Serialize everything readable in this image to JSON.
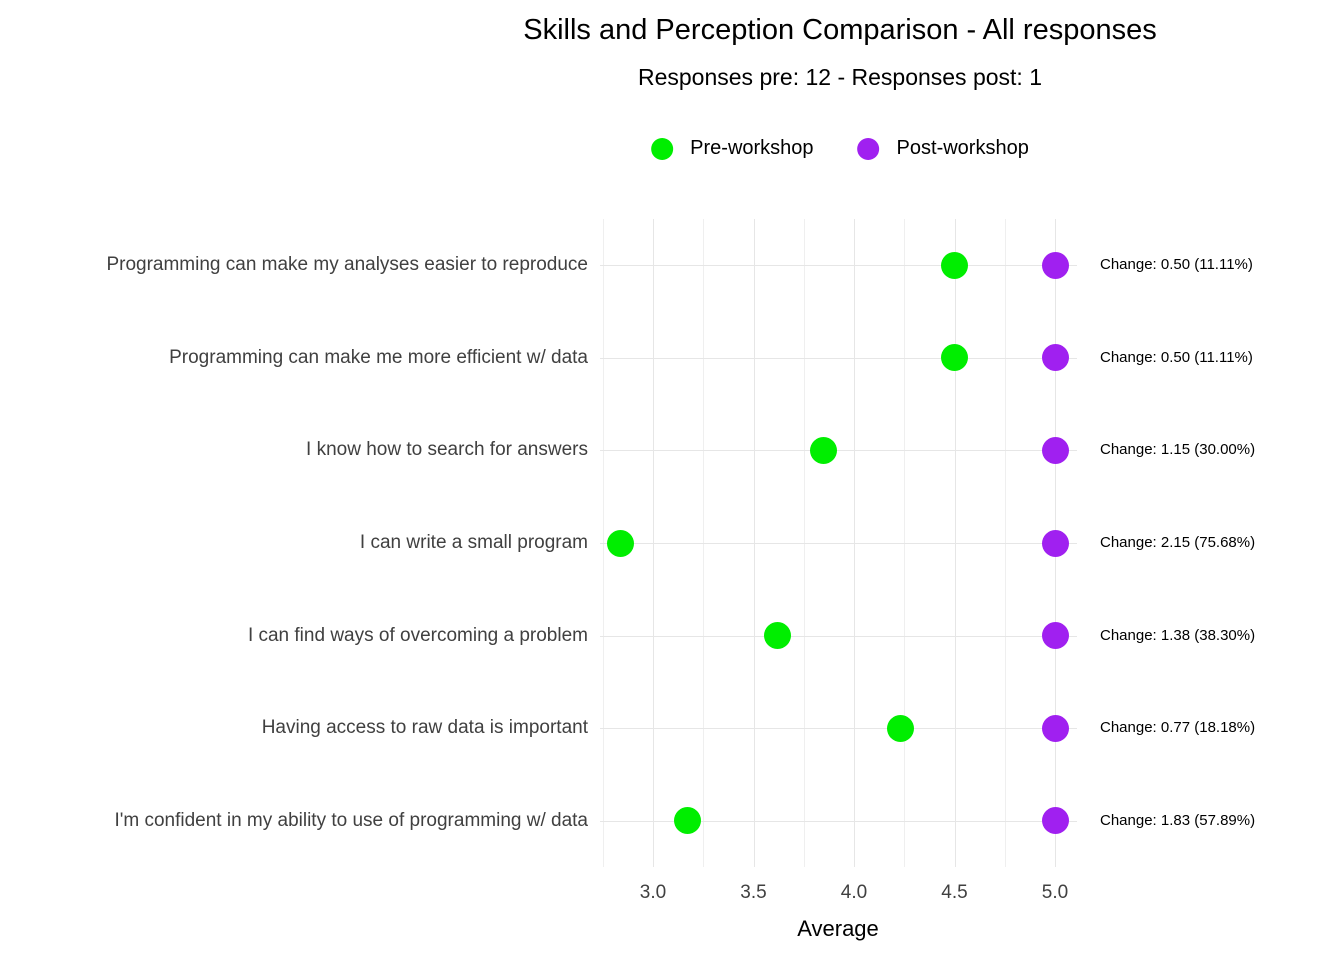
{
  "chart_data": {
    "type": "scatter",
    "title": "Skills and Perception Comparison - All responses",
    "subtitle": "Responses pre: 12 - Responses post: 1",
    "xlabel": "Average",
    "categories": [
      "Programming can make my analyses easier to reproduce",
      "Programming can make me more efficient w/ data",
      "I know how to search for answers",
      "I can write a small program",
      "I can find ways of overcoming a problem",
      "Having access to raw data is important",
      "I'm confident in my ability to use of programming w/ data"
    ],
    "series": [
      {
        "name": "Pre-workshop",
        "color": "#00ee00",
        "values": [
          4.5,
          4.5,
          3.85,
          2.84,
          3.62,
          4.23,
          3.17
        ]
      },
      {
        "name": "Post-workshop",
        "color": "#a020f0",
        "values": [
          5.0,
          5.0,
          5.0,
          5.0,
          5.0,
          5.0,
          5.0
        ]
      }
    ],
    "annotations": [
      "Change: 0.50 (11.11%)",
      "Change: 0.50 (11.11%)",
      "Change: 1.15 (30.00%)",
      "Change: 2.15 (75.68%)",
      "Change: 1.38 (38.30%)",
      "Change: 0.77 (18.18%)",
      "Change: 1.83 (57.89%)"
    ],
    "x_ticks": [
      3.0,
      3.5,
      4.0,
      4.5,
      5.0
    ],
    "x_tick_labels": [
      "3.0",
      "3.5",
      "4.0",
      "4.5",
      "5.0"
    ],
    "x_minor_ticks": [
      2.75,
      3.25,
      3.75,
      4.25,
      4.75
    ],
    "xlim": [
      2.74,
      5.11
    ],
    "grid": true,
    "legend_position": "top",
    "background": "#ffffff",
    "gridline_color": "#e6e6e6"
  }
}
